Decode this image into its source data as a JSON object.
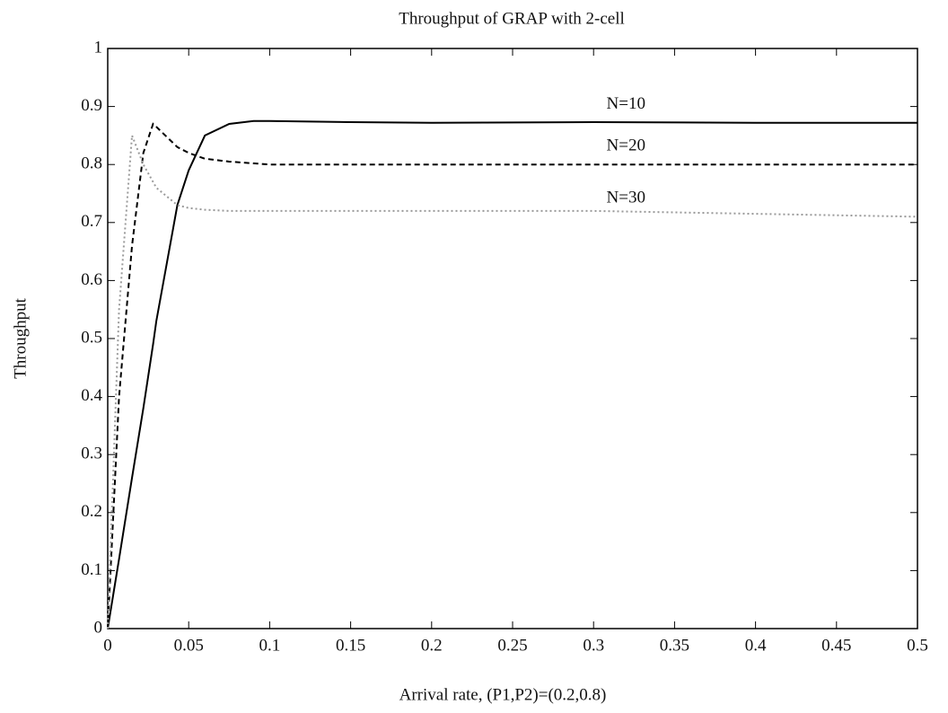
{
  "chart_data": {
    "type": "line",
    "title": "Throughput of GRAP with 2-cell",
    "x_label": "Arrival rate, (P1,P2)=(0.2,0.8)",
    "y_label": "Throughput",
    "x": [
      0,
      0.007,
      0.015,
      0.022,
      0.028,
      0.03,
      0.043,
      0.05,
      0.06,
      0.075,
      0.09,
      0.1,
      0.15,
      0.2,
      0.3,
      0.4,
      0.5
    ],
    "series": [
      {
        "name": "N=10",
        "color": "#000000",
        "dash": "solid",
        "values": [
          0,
          0.12,
          0.26,
          0.38,
          0.49,
          0.53,
          0.73,
          0.79,
          0.85,
          0.87,
          0.875,
          0.875,
          0.873,
          0.872,
          0.873,
          0.872,
          0.872
        ]
      },
      {
        "name": "N=20",
        "color": "#000000",
        "dash": "dashed",
        "values": [
          0,
          0.4,
          0.66,
          0.82,
          0.87,
          0.865,
          0.83,
          0.82,
          0.81,
          0.805,
          0.802,
          0.8,
          0.8,
          0.8,
          0.8,
          0.8,
          0.8
        ]
      },
      {
        "name": "N=30",
        "color": "#9a9a9a",
        "dash": "dotted",
        "values": [
          0,
          0.55,
          0.85,
          0.8,
          0.77,
          0.76,
          0.73,
          0.725,
          0.722,
          0.72,
          0.72,
          0.72,
          0.72,
          0.72,
          0.72,
          0.715,
          0.71
        ]
      }
    ],
    "xlim": [
      0,
      0.5
    ],
    "ylim": [
      0,
      1
    ],
    "xticks": [
      0,
      0.05,
      0.1,
      0.15,
      0.2,
      0.25,
      0.3,
      0.35,
      0.4,
      0.45,
      0.5
    ],
    "yticks": [
      0,
      0.1,
      0.2,
      0.3,
      0.4,
      0.5,
      0.6,
      0.7,
      0.8,
      0.9,
      1
    ],
    "grid": false
  }
}
